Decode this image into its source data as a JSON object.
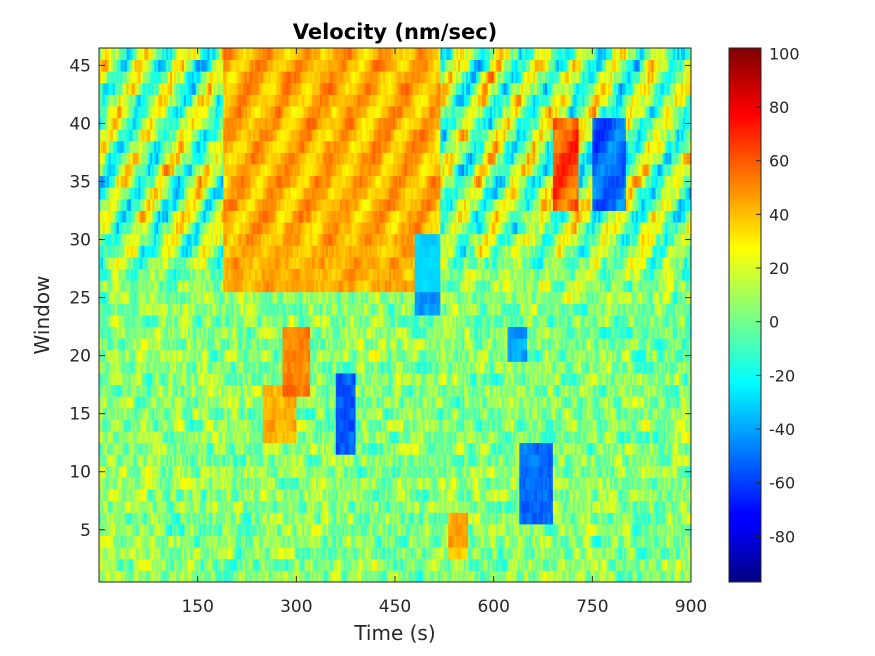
{
  "chart_data": {
    "type": "heatmap",
    "title": "Velocity (nm/sec)",
    "xlabel": "Time (s)",
    "ylabel": "Window",
    "xlim": [
      0,
      900
    ],
    "ylim": [
      0.5,
      46.5
    ],
    "x_ticks": [
      150,
      300,
      450,
      600,
      750,
      900
    ],
    "y_ticks": [
      5,
      10,
      15,
      20,
      25,
      30,
      35,
      40,
      45
    ],
    "n_windows": 46,
    "n_time_bins": 300,
    "colormap": "jet",
    "clim": [
      -97,
      102
    ],
    "colorbar_ticks": [
      100,
      80,
      60,
      40,
      20,
      0,
      -20,
      -40,
      -60,
      -80
    ],
    "colorbar_label": "",
    "grid": false,
    "features": [
      {
        "name": "descending red streaks",
        "x_range": [
          190,
          520
        ],
        "window_range": [
          26,
          46
        ],
        "value": 55
      },
      {
        "name": "red band",
        "x_range": [
          690,
          730
        ],
        "window_range": [
          33,
          40
        ],
        "value": 80
      },
      {
        "name": "blue band",
        "x_range": [
          750,
          800
        ],
        "window_range": [
          33,
          40
        ],
        "value": -70
      },
      {
        "name": "blue band",
        "x_range": [
          480,
          520
        ],
        "window_range": [
          24,
          30
        ],
        "value": -60
      },
      {
        "name": "red patch",
        "x_range": [
          280,
          320
        ],
        "window_range": [
          17,
          22
        ],
        "value": 65
      },
      {
        "name": "red patch",
        "x_range": [
          250,
          300
        ],
        "window_range": [
          13,
          17
        ],
        "value": 55
      },
      {
        "name": "blue patch",
        "x_range": [
          360,
          390
        ],
        "window_range": [
          12,
          18
        ],
        "value": -75
      },
      {
        "name": "blue patch",
        "x_range": [
          640,
          690
        ],
        "window_range": [
          6,
          12
        ],
        "value": -70
      },
      {
        "name": "blue patch",
        "x_range": [
          620,
          650
        ],
        "window_range": [
          20,
          22
        ],
        "value": -55
      },
      {
        "name": "red patch",
        "x_range": [
          530,
          560
        ],
        "window_range": [
          3,
          6
        ],
        "value": 55
      }
    ]
  }
}
